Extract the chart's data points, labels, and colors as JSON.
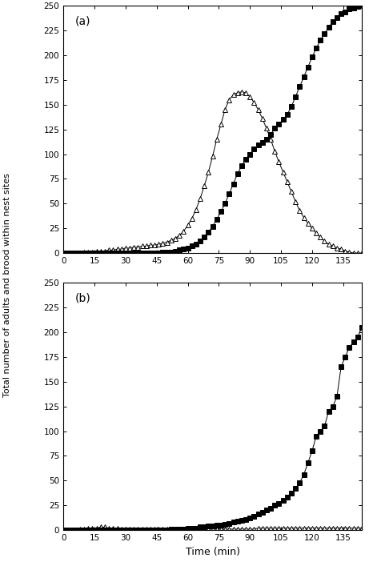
{
  "panel_a": {
    "label": "(a)",
    "squares_x": [
      0,
      2,
      4,
      6,
      8,
      10,
      12,
      14,
      16,
      18,
      20,
      22,
      24,
      26,
      28,
      30,
      32,
      34,
      36,
      38,
      40,
      42,
      44,
      46,
      48,
      50,
      52,
      54,
      56,
      58,
      60,
      62,
      64,
      66,
      68,
      70,
      72,
      74,
      76,
      78,
      80,
      82,
      84,
      86,
      88,
      90,
      92,
      94,
      96,
      98,
      100,
      102,
      104,
      106,
      108,
      110,
      112,
      114,
      116,
      118,
      120,
      122,
      124,
      126,
      128,
      130,
      132,
      134,
      136,
      138,
      140,
      142,
      144
    ],
    "squares_y": [
      0,
      0,
      0,
      0,
      0,
      0,
      0,
      0,
      0,
      0,
      0,
      0,
      0,
      0,
      0,
      0,
      0,
      0,
      0,
      0,
      0,
      0,
      0,
      0,
      1,
      1,
      1,
      2,
      3,
      4,
      5,
      7,
      9,
      12,
      16,
      21,
      27,
      34,
      42,
      50,
      60,
      70,
      80,
      88,
      95,
      100,
      105,
      109,
      112,
      115,
      120,
      126,
      130,
      135,
      140,
      148,
      158,
      168,
      178,
      188,
      198,
      207,
      215,
      222,
      228,
      234,
      238,
      242,
      244,
      247,
      248,
      249,
      250
    ],
    "triangles_x": [
      0,
      2,
      4,
      6,
      8,
      10,
      12,
      14,
      16,
      18,
      20,
      22,
      24,
      26,
      28,
      30,
      32,
      34,
      36,
      38,
      40,
      42,
      44,
      46,
      48,
      50,
      52,
      54,
      56,
      58,
      60,
      62,
      64,
      66,
      68,
      70,
      72,
      74,
      76,
      78,
      80,
      82,
      84,
      86,
      88,
      90,
      92,
      94,
      96,
      98,
      100,
      102,
      104,
      106,
      108,
      110,
      112,
      114,
      116,
      118,
      120,
      122,
      124,
      126,
      128,
      130,
      132,
      134,
      136,
      138,
      140,
      142,
      144
    ],
    "triangles_y": [
      0,
      0,
      0,
      0,
      0,
      1,
      1,
      1,
      2,
      2,
      2,
      3,
      3,
      4,
      4,
      5,
      5,
      6,
      6,
      7,
      7,
      8,
      8,
      9,
      10,
      11,
      13,
      15,
      18,
      22,
      28,
      35,
      44,
      55,
      68,
      82,
      98,
      115,
      130,
      145,
      155,
      160,
      162,
      163,
      162,
      158,
      152,
      145,
      136,
      126,
      115,
      103,
      92,
      82,
      72,
      62,
      52,
      43,
      36,
      30,
      25,
      20,
      16,
      12,
      9,
      7,
      5,
      4,
      2,
      1,
      0,
      0,
      0
    ]
  },
  "panel_b": {
    "label": "(b)",
    "squares_x": [
      0,
      2,
      4,
      6,
      8,
      10,
      12,
      14,
      16,
      18,
      20,
      22,
      24,
      26,
      28,
      30,
      32,
      34,
      36,
      38,
      40,
      42,
      44,
      46,
      48,
      50,
      52,
      54,
      56,
      58,
      60,
      62,
      64,
      66,
      68,
      70,
      72,
      74,
      76,
      78,
      80,
      82,
      84,
      86,
      88,
      90,
      92,
      94,
      96,
      98,
      100,
      102,
      104,
      106,
      108,
      110,
      112,
      114,
      116,
      118,
      120,
      122,
      124,
      126,
      128,
      130,
      132,
      134,
      136,
      138,
      140,
      142,
      144
    ],
    "squares_y": [
      0,
      0,
      0,
      0,
      0,
      0,
      0,
      0,
      0,
      0,
      0,
      0,
      0,
      0,
      0,
      0,
      0,
      0,
      0,
      0,
      0,
      0,
      0,
      0,
      0,
      0,
      1,
      1,
      1,
      1,
      2,
      2,
      2,
      3,
      3,
      4,
      4,
      5,
      5,
      6,
      7,
      8,
      9,
      10,
      11,
      12,
      14,
      16,
      18,
      20,
      22,
      25,
      27,
      30,
      33,
      37,
      42,
      48,
      56,
      68,
      80,
      95,
      100,
      105,
      120,
      125,
      135,
      165,
      175,
      185,
      190,
      195,
      205
    ],
    "triangles_x": [
      0,
      2,
      4,
      6,
      8,
      10,
      12,
      14,
      16,
      18,
      20,
      22,
      24,
      26,
      28,
      30,
      32,
      34,
      36,
      38,
      40,
      42,
      44,
      46,
      48,
      50,
      52,
      54,
      56,
      58,
      60,
      62,
      64,
      66,
      68,
      70,
      72,
      74,
      76,
      78,
      80,
      82,
      84,
      86,
      88,
      90,
      92,
      94,
      96,
      98,
      100,
      102,
      104,
      106,
      108,
      110,
      112,
      114,
      116,
      118,
      120,
      122,
      124,
      126,
      128,
      130,
      132,
      134,
      136,
      138,
      140,
      142,
      144
    ],
    "triangles_y": [
      0,
      0,
      0,
      0,
      1,
      1,
      2,
      2,
      2,
      3,
      3,
      2,
      2,
      2,
      1,
      1,
      1,
      1,
      1,
      1,
      1,
      1,
      1,
      1,
      1,
      1,
      1,
      1,
      1,
      1,
      1,
      1,
      1,
      1,
      1,
      1,
      1,
      1,
      1,
      1,
      1,
      1,
      1,
      1,
      1,
      1,
      1,
      2,
      2,
      2,
      2,
      2,
      2,
      2,
      2,
      2,
      2,
      2,
      2,
      2,
      2,
      2,
      2,
      2,
      2,
      2,
      2,
      2,
      2,
      2,
      2,
      2,
      2
    ]
  },
  "ylim": [
    0,
    250
  ],
  "xlim": [
    0,
    144
  ],
  "xticks": [
    0,
    15,
    30,
    45,
    60,
    75,
    90,
    105,
    120,
    135
  ],
  "yticks": [
    0,
    25,
    50,
    75,
    100,
    125,
    150,
    175,
    200,
    225,
    250
  ],
  "xlabel": "Time (min)",
  "ylabel": "Total number of adults and brood within nest sites",
  "square_color": "#000000",
  "triangle_color": "#000000",
  "line_color": "#000000",
  "bg_color": "white"
}
